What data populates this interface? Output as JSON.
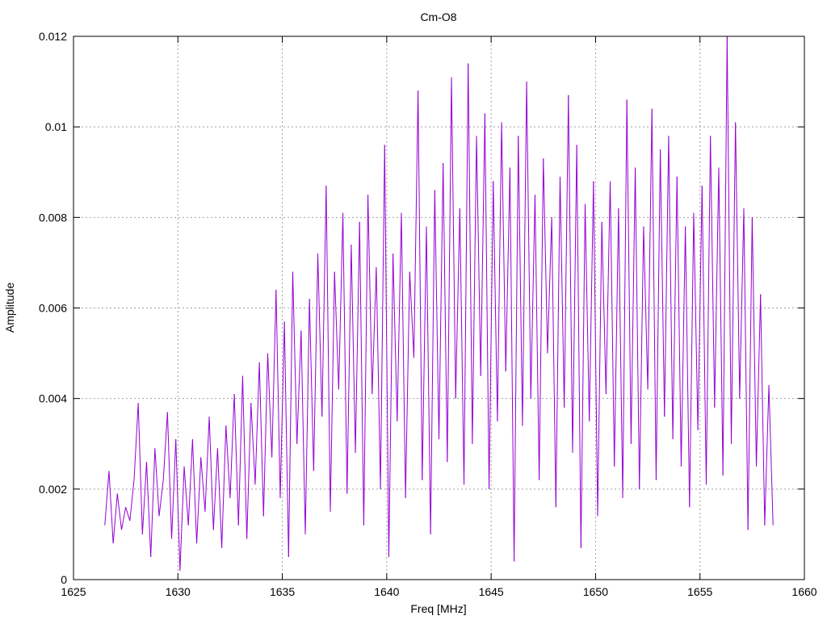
{
  "chart_data": {
    "type": "line",
    "title": "Cm-O8",
    "xlabel": "Freq [MHz]",
    "ylabel": "Amplitude",
    "xlim": [
      1625,
      1660
    ],
    "ylim": [
      0,
      0.012
    ],
    "grid": true,
    "x_ticks": [
      "1625",
      "1630",
      "1635",
      "1640",
      "1645",
      "1650",
      "1655",
      "1660"
    ],
    "y_ticks": [
      "0",
      "0.002",
      "0.004",
      "0.006",
      "0.008",
      "0.01",
      "0.012"
    ],
    "x_tick_values": [
      1625,
      1630,
      1635,
      1640,
      1645,
      1650,
      1655,
      1660
    ],
    "y_tick_values": [
      0,
      0.002,
      0.004,
      0.006,
      0.008,
      0.01,
      0.012
    ],
    "series": [
      {
        "name": "Cm-O8",
        "color": "#9400d3",
        "x_start": 1626.5,
        "x_step": 0.2,
        "values": [
          0.0012,
          0.0024,
          0.0008,
          0.0019,
          0.0011,
          0.0016,
          0.0013,
          0.0022,
          0.0039,
          0.001,
          0.0026,
          0.0005,
          0.0029,
          0.0014,
          0.0022,
          0.0037,
          0.0009,
          0.0031,
          0.0002,
          0.0025,
          0.0012,
          0.0031,
          0.0008,
          0.0027,
          0.0015,
          0.0036,
          0.0011,
          0.0029,
          0.0007,
          0.0034,
          0.0018,
          0.0041,
          0.0012,
          0.0045,
          0.0009,
          0.0039,
          0.0021,
          0.0048,
          0.0014,
          0.005,
          0.0027,
          0.0064,
          0.0018,
          0.0057,
          0.0005,
          0.0068,
          0.003,
          0.0055,
          0.001,
          0.0062,
          0.0024,
          0.0072,
          0.0036,
          0.0087,
          0.0015,
          0.0068,
          0.0042,
          0.0081,
          0.0019,
          0.0074,
          0.0028,
          0.0079,
          0.0012,
          0.0085,
          0.0041,
          0.0069,
          0.002,
          0.0096,
          0.0005,
          0.0072,
          0.0035,
          0.0081,
          0.0018,
          0.0068,
          0.0049,
          0.0108,
          0.0022,
          0.0078,
          0.001,
          0.0086,
          0.0031,
          0.0092,
          0.0026,
          0.0111,
          0.004,
          0.0082,
          0.0021,
          0.0114,
          0.003,
          0.0098,
          0.0045,
          0.0103,
          0.002,
          0.0088,
          0.0035,
          0.0101,
          0.0046,
          0.0091,
          0.0004,
          0.0098,
          0.0034,
          0.011,
          0.004,
          0.0085,
          0.0022,
          0.0093,
          0.005,
          0.008,
          0.0016,
          0.0089,
          0.0038,
          0.0107,
          0.0028,
          0.0096,
          0.0007,
          0.0083,
          0.0035,
          0.0088,
          0.0014,
          0.0079,
          0.0041,
          0.0088,
          0.0025,
          0.0082,
          0.0018,
          0.0106,
          0.003,
          0.0091,
          0.002,
          0.0078,
          0.0042,
          0.0104,
          0.0022,
          0.0095,
          0.0036,
          0.0098,
          0.0031,
          0.0089,
          0.0025,
          0.0078,
          0.0016,
          0.0081,
          0.0033,
          0.0087,
          0.0021,
          0.0098,
          0.0038,
          0.0091,
          0.0023,
          0.012,
          0.003,
          0.0101,
          0.004,
          0.0082,
          0.0011,
          0.008,
          0.0025,
          0.0063,
          0.0012,
          0.0043,
          0.0012
        ]
      }
    ]
  }
}
